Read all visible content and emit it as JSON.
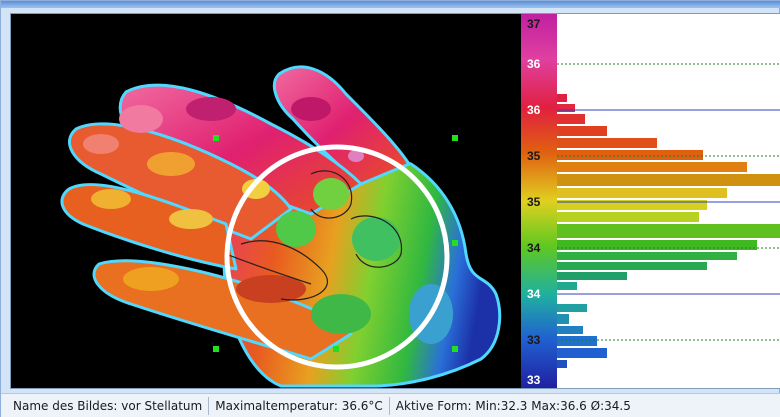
{
  "scale": {
    "labels": [
      "37",
      "36",
      "36",
      "35",
      "35",
      "34",
      "34",
      "33",
      "33"
    ]
  },
  "status": {
    "image_name": "Name des Bildes: vor Stellatum",
    "max_temp": "Maximaltemperatur: 36.6°C",
    "active_shape": "Aktive Form: Min:32.3 Max:36.6 Ø:34.5"
  },
  "colors": {
    "hot": "#e0208a",
    "warm": "#e8501c",
    "mid": "#f0c020",
    "cool": "#30c830",
    "cold": "#2040c0"
  },
  "icons": {
    "roi_circle": "circle-region-icon",
    "handle": "square-handle-icon"
  }
}
